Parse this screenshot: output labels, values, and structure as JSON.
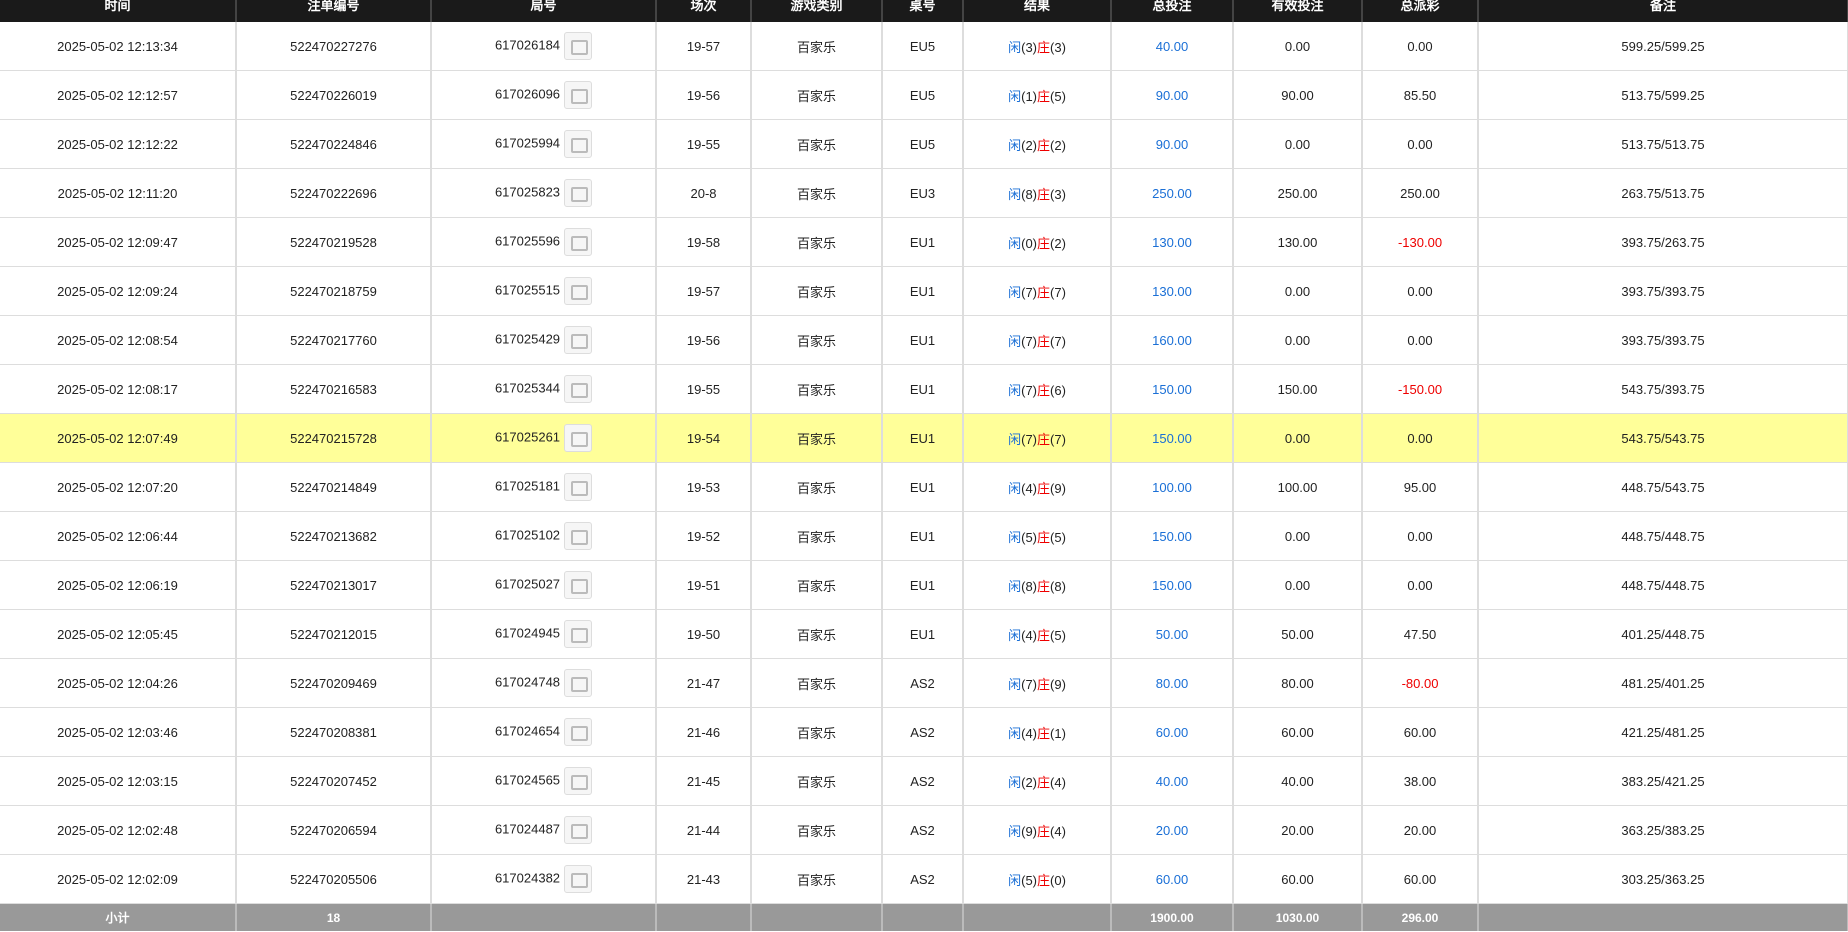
{
  "table": {
    "headers": [
      "时间",
      "注单编号",
      "局号",
      "场次",
      "游戏类别",
      "桌号",
      "结果",
      "总投注",
      "有效投注",
      "总派彩",
      "备注"
    ],
    "rows": [
      [
        "2025-05-02 12:13:34",
        "522470227276",
        "617026184",
        "19-57",
        "百家乐",
        "EU5",
        [
          "闲",
          "(3)",
          "庄",
          "(3)"
        ],
        "40.00",
        "0.00",
        "0.00",
        "599.25/599.25"
      ],
      [
        "2025-05-02 12:12:57",
        "522470226019",
        "617026096",
        "19-56",
        "百家乐",
        "EU5",
        [
          "闲",
          "(1)",
          "庄",
          "(5)"
        ],
        "90.00",
        "90.00",
        "85.50",
        "513.75/599.25"
      ],
      [
        "2025-05-02 12:12:22",
        "522470224846",
        "617025994",
        "19-55",
        "百家乐",
        "EU5",
        [
          "闲",
          "(2)",
          "庄",
          "(2)"
        ],
        "90.00",
        "0.00",
        "0.00",
        "513.75/513.75"
      ],
      [
        "2025-05-02 12:11:20",
        "522470222696",
        "617025823",
        "20-8",
        "百家乐",
        "EU3",
        [
          "闲",
          "(8)",
          "庄",
          "(3)"
        ],
        "250.00",
        "250.00",
        "250.00",
        "263.75/513.75"
      ],
      [
        "2025-05-02 12:09:47",
        "522470219528",
        "617025596",
        "19-58",
        "百家乐",
        "EU1",
        [
          "闲",
          "(0)",
          "庄",
          "(2)"
        ],
        "130.00",
        "130.00",
        "-130.00",
        "393.75/263.75"
      ],
      [
        "2025-05-02 12:09:24",
        "522470218759",
        "617025515",
        "19-57",
        "百家乐",
        "EU1",
        [
          "闲",
          "(7)",
          "庄",
          "(7)"
        ],
        "130.00",
        "0.00",
        "0.00",
        "393.75/393.75"
      ],
      [
        "2025-05-02 12:08:54",
        "522470217760",
        "617025429",
        "19-56",
        "百家乐",
        "EU1",
        [
          "闲",
          "(7)",
          "庄",
          "(7)"
        ],
        "160.00",
        "0.00",
        "0.00",
        "393.75/393.75"
      ],
      [
        "2025-05-02 12:08:17",
        "522470216583",
        "617025344",
        "19-55",
        "百家乐",
        "EU1",
        [
          "闲",
          "(7)",
          "庄",
          "(6)"
        ],
        "150.00",
        "150.00",
        "-150.00",
        "543.75/393.75"
      ],
      [
        "2025-05-02 12:07:49",
        "522470215728",
        "617025261",
        "19-54",
        "百家乐",
        "EU1",
        [
          "闲",
          "(7)",
          "庄",
          "(7)"
        ],
        "150.00",
        "0.00",
        "0.00",
        "543.75/543.75"
      ],
      [
        "2025-05-02 12:07:20",
        "522470214849",
        "617025181",
        "19-53",
        "百家乐",
        "EU1",
        [
          "闲",
          "(4)",
          "庄",
          "(9)"
        ],
        "100.00",
        "100.00",
        "95.00",
        "448.75/543.75"
      ],
      [
        "2025-05-02 12:06:44",
        "522470213682",
        "617025102",
        "19-52",
        "百家乐",
        "EU1",
        [
          "闲",
          "(5)",
          "庄",
          "(5)"
        ],
        "150.00",
        "0.00",
        "0.00",
        "448.75/448.75"
      ],
      [
        "2025-05-02 12:06:19",
        "522470213017",
        "617025027",
        "19-51",
        "百家乐",
        "EU1",
        [
          "闲",
          "(8)",
          "庄",
          "(8)"
        ],
        "150.00",
        "0.00",
        "0.00",
        "448.75/448.75"
      ],
      [
        "2025-05-02 12:05:45",
        "522470212015",
        "617024945",
        "19-50",
        "百家乐",
        "EU1",
        [
          "闲",
          "(4)",
          "庄",
          "(5)"
        ],
        "50.00",
        "50.00",
        "47.50",
        "401.25/448.75"
      ],
      [
        "2025-05-02 12:04:26",
        "522470209469",
        "617024748",
        "21-47",
        "百家乐",
        "AS2",
        [
          "闲",
          "(7)",
          "庄",
          "(9)"
        ],
        "80.00",
        "80.00",
        "-80.00",
        "481.25/401.25"
      ],
      [
        "2025-05-02 12:03:46",
        "522470208381",
        "617024654",
        "21-46",
        "百家乐",
        "AS2",
        [
          "闲",
          "(4)",
          "庄",
          "(1)"
        ],
        "60.00",
        "60.00",
        "60.00",
        "421.25/481.25"
      ],
      [
        "2025-05-02 12:03:15",
        "522470207452",
        "617024565",
        "21-45",
        "百家乐",
        "AS2",
        [
          "闲",
          "(2)",
          "庄",
          "(4)"
        ],
        "40.00",
        "40.00",
        "38.00",
        "383.25/421.25"
      ],
      [
        "2025-05-02 12:02:48",
        "522470206594",
        "617024487",
        "21-44",
        "百家乐",
        "AS2",
        [
          "闲",
          "(9)",
          "庄",
          "(4)"
        ],
        "20.00",
        "20.00",
        "20.00",
        "363.25/383.25"
      ],
      [
        "2025-05-02 12:02:09",
        "522470205506",
        "617024382",
        "21-43",
        "百家乐",
        "AS2",
        [
          "闲",
          "(5)",
          "庄",
          "(0)"
        ],
        "60.00",
        "60.00",
        "60.00",
        "303.25/363.25"
      ]
    ],
    "footer": {
      "label": "小计",
      "count": "18",
      "bet": "1900.00",
      "valid": "1030.00",
      "win": "296.00"
    }
  }
}
